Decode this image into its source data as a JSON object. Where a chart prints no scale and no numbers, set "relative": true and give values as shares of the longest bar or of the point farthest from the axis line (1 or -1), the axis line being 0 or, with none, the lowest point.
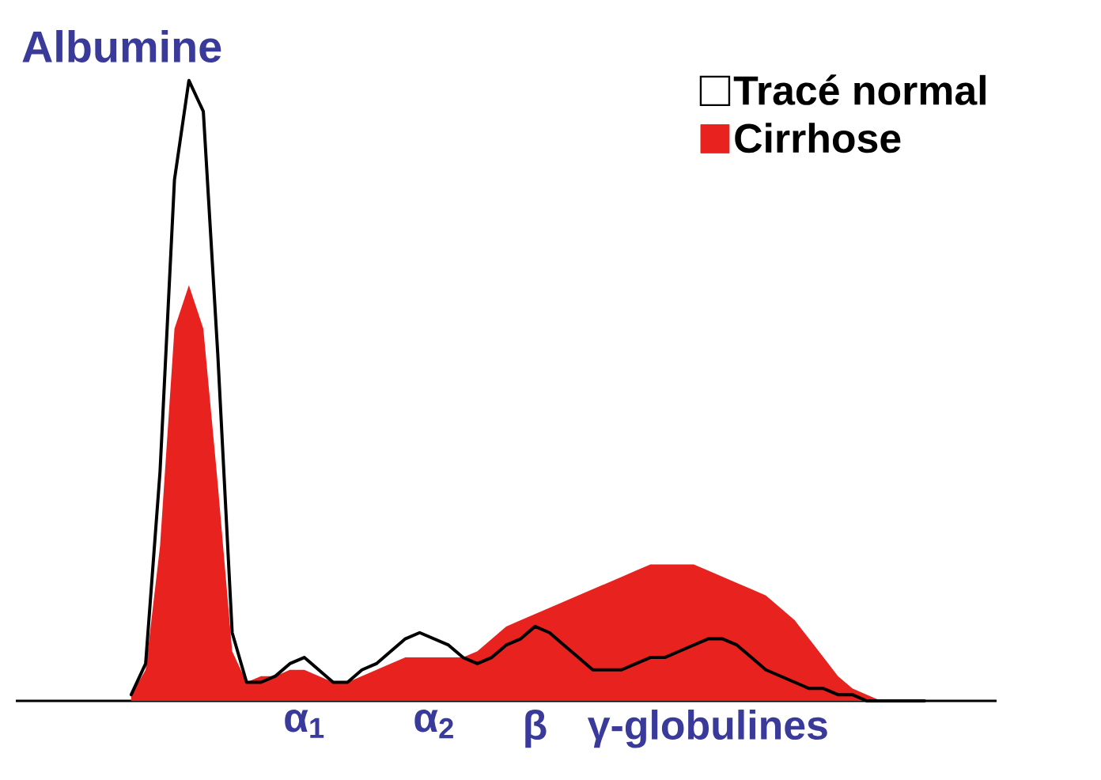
{
  "chart_data": {
    "type": "area",
    "relative": true,
    "legend": "top right",
    "annotations": [
      "Albumine"
    ],
    "categories": [
      null,
      null,
      null,
      null,
      null,
      null,
      null,
      null,
      null,
      null,
      null,
      null,
      "α$_{1}$",
      null,
      null,
      null,
      null,
      null,
      null,
      null,
      null,
      "α$_{2}$",
      null,
      null,
      null,
      null,
      null,
      null,
      "β",
      null,
      null,
      null,
      null,
      null,
      null,
      null,
      null,
      null,
      null,
      null,
      "γ-globulines",
      null,
      null,
      null,
      null,
      null,
      null,
      null,
      null,
      null,
      null,
      null,
      null,
      null,
      null,
      null
    ],
    "series": [
      {
        "name": "Tracé normal",
        "type": "line",
        "color": "#000000",
        "values": [
          0.01,
          0.06,
          0.37,
          0.84,
          1,
          0.95,
          0.56,
          0.11,
          0.03,
          0.03,
          0.04,
          0.06,
          0.07,
          0.05,
          0.03,
          0.03,
          0.05,
          0.06,
          0.08,
          0.1,
          0.11,
          0.1,
          0.09,
          0.07,
          0.06,
          0.07,
          0.09,
          0.1,
          0.12,
          0.11,
          0.09,
          0.07,
          0.05,
          0.05,
          0.05,
          0.06,
          0.07,
          0.07,
          0.08,
          0.09,
          0.1,
          0.1,
          0.09,
          0.07,
          0.05,
          0.04,
          0.03,
          0.02,
          0.02,
          0.01,
          0.01,
          0,
          0,
          0,
          0,
          0
        ]
      },
      {
        "name": "Cirrhose",
        "color": "#e8231f",
        "values": [
          0.01,
          0.05,
          0.25,
          0.6,
          0.67,
          0.6,
          0.35,
          0.08,
          0.03,
          0.04,
          0.04,
          0.05,
          0.05,
          0.04,
          0.03,
          0.03,
          0.04,
          0.05,
          0.06,
          0.07,
          0.07,
          0.07,
          0.07,
          0.07,
          0.08,
          0.1,
          0.12,
          0.13,
          0.14,
          0.15,
          0.16,
          0.17,
          0.18,
          0.19,
          0.2,
          0.21,
          0.22,
          0.22,
          0.22,
          0.22,
          0.21,
          0.2,
          0.19,
          0.18,
          0.17,
          0.15,
          0.13,
          0.1,
          0.07,
          0.04,
          0.02,
          0.01,
          0,
          0,
          0,
          0
        ]
      }
    ]
  }
}
